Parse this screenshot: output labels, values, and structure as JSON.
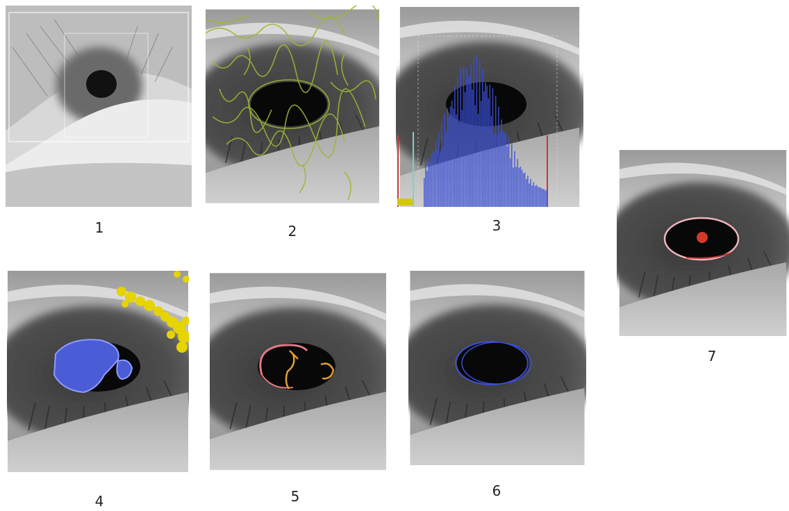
{
  "panels": [
    {
      "label": "1"
    },
    {
      "label": "2"
    },
    {
      "label": "3"
    },
    {
      "label": "4"
    },
    {
      "label": "5"
    },
    {
      "label": "6"
    },
    {
      "label": "7"
    }
  ]
}
